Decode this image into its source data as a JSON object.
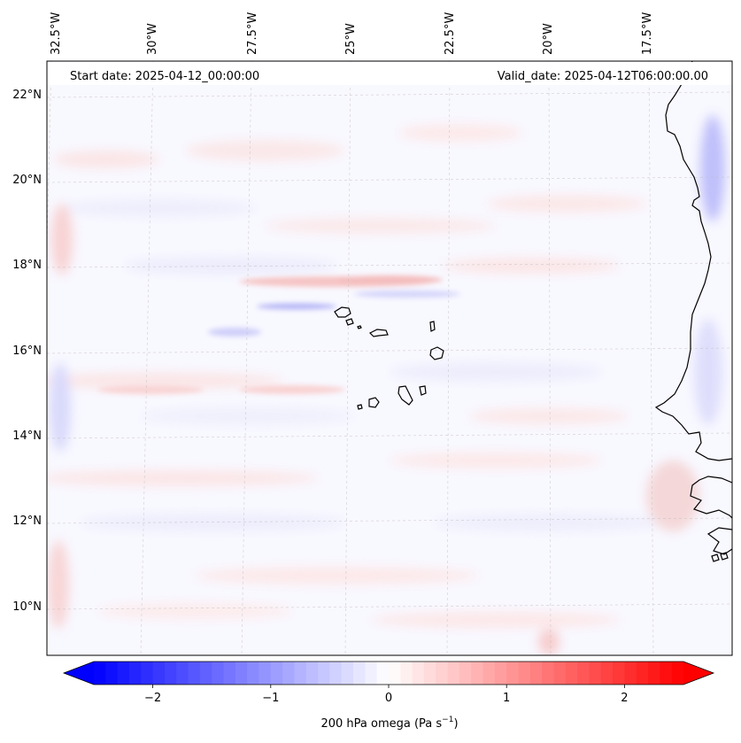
{
  "info": {
    "start_date": "Start date: 2025-04-12_00:00:00",
    "valid_date": "Valid_date: 2025-04-12T06:00:00.00"
  },
  "map": {
    "lon_labels": [
      "32.5°W",
      "30°W",
      "27.5°W",
      "25°W",
      "22.5°W",
      "20°W",
      "17.5°W"
    ],
    "lat_labels": [
      "22°N",
      "20°N",
      "18°N",
      "16°N",
      "14°N",
      "12°N",
      "10°N"
    ]
  },
  "colorbar": {
    "label_main": "200 hPa omega (Pa s",
    "label_exp": "−1",
    "label_close": ")",
    "ticks": [
      "−2",
      "−1",
      "0",
      "1",
      "2"
    ],
    "tick_values": [
      -2,
      -1,
      0,
      1,
      2
    ],
    "range": [
      -2.5,
      2.5
    ],
    "colors": {
      "min": "#0000ff",
      "mid": "#ffffff",
      "max": "#ff0000"
    }
  }
}
